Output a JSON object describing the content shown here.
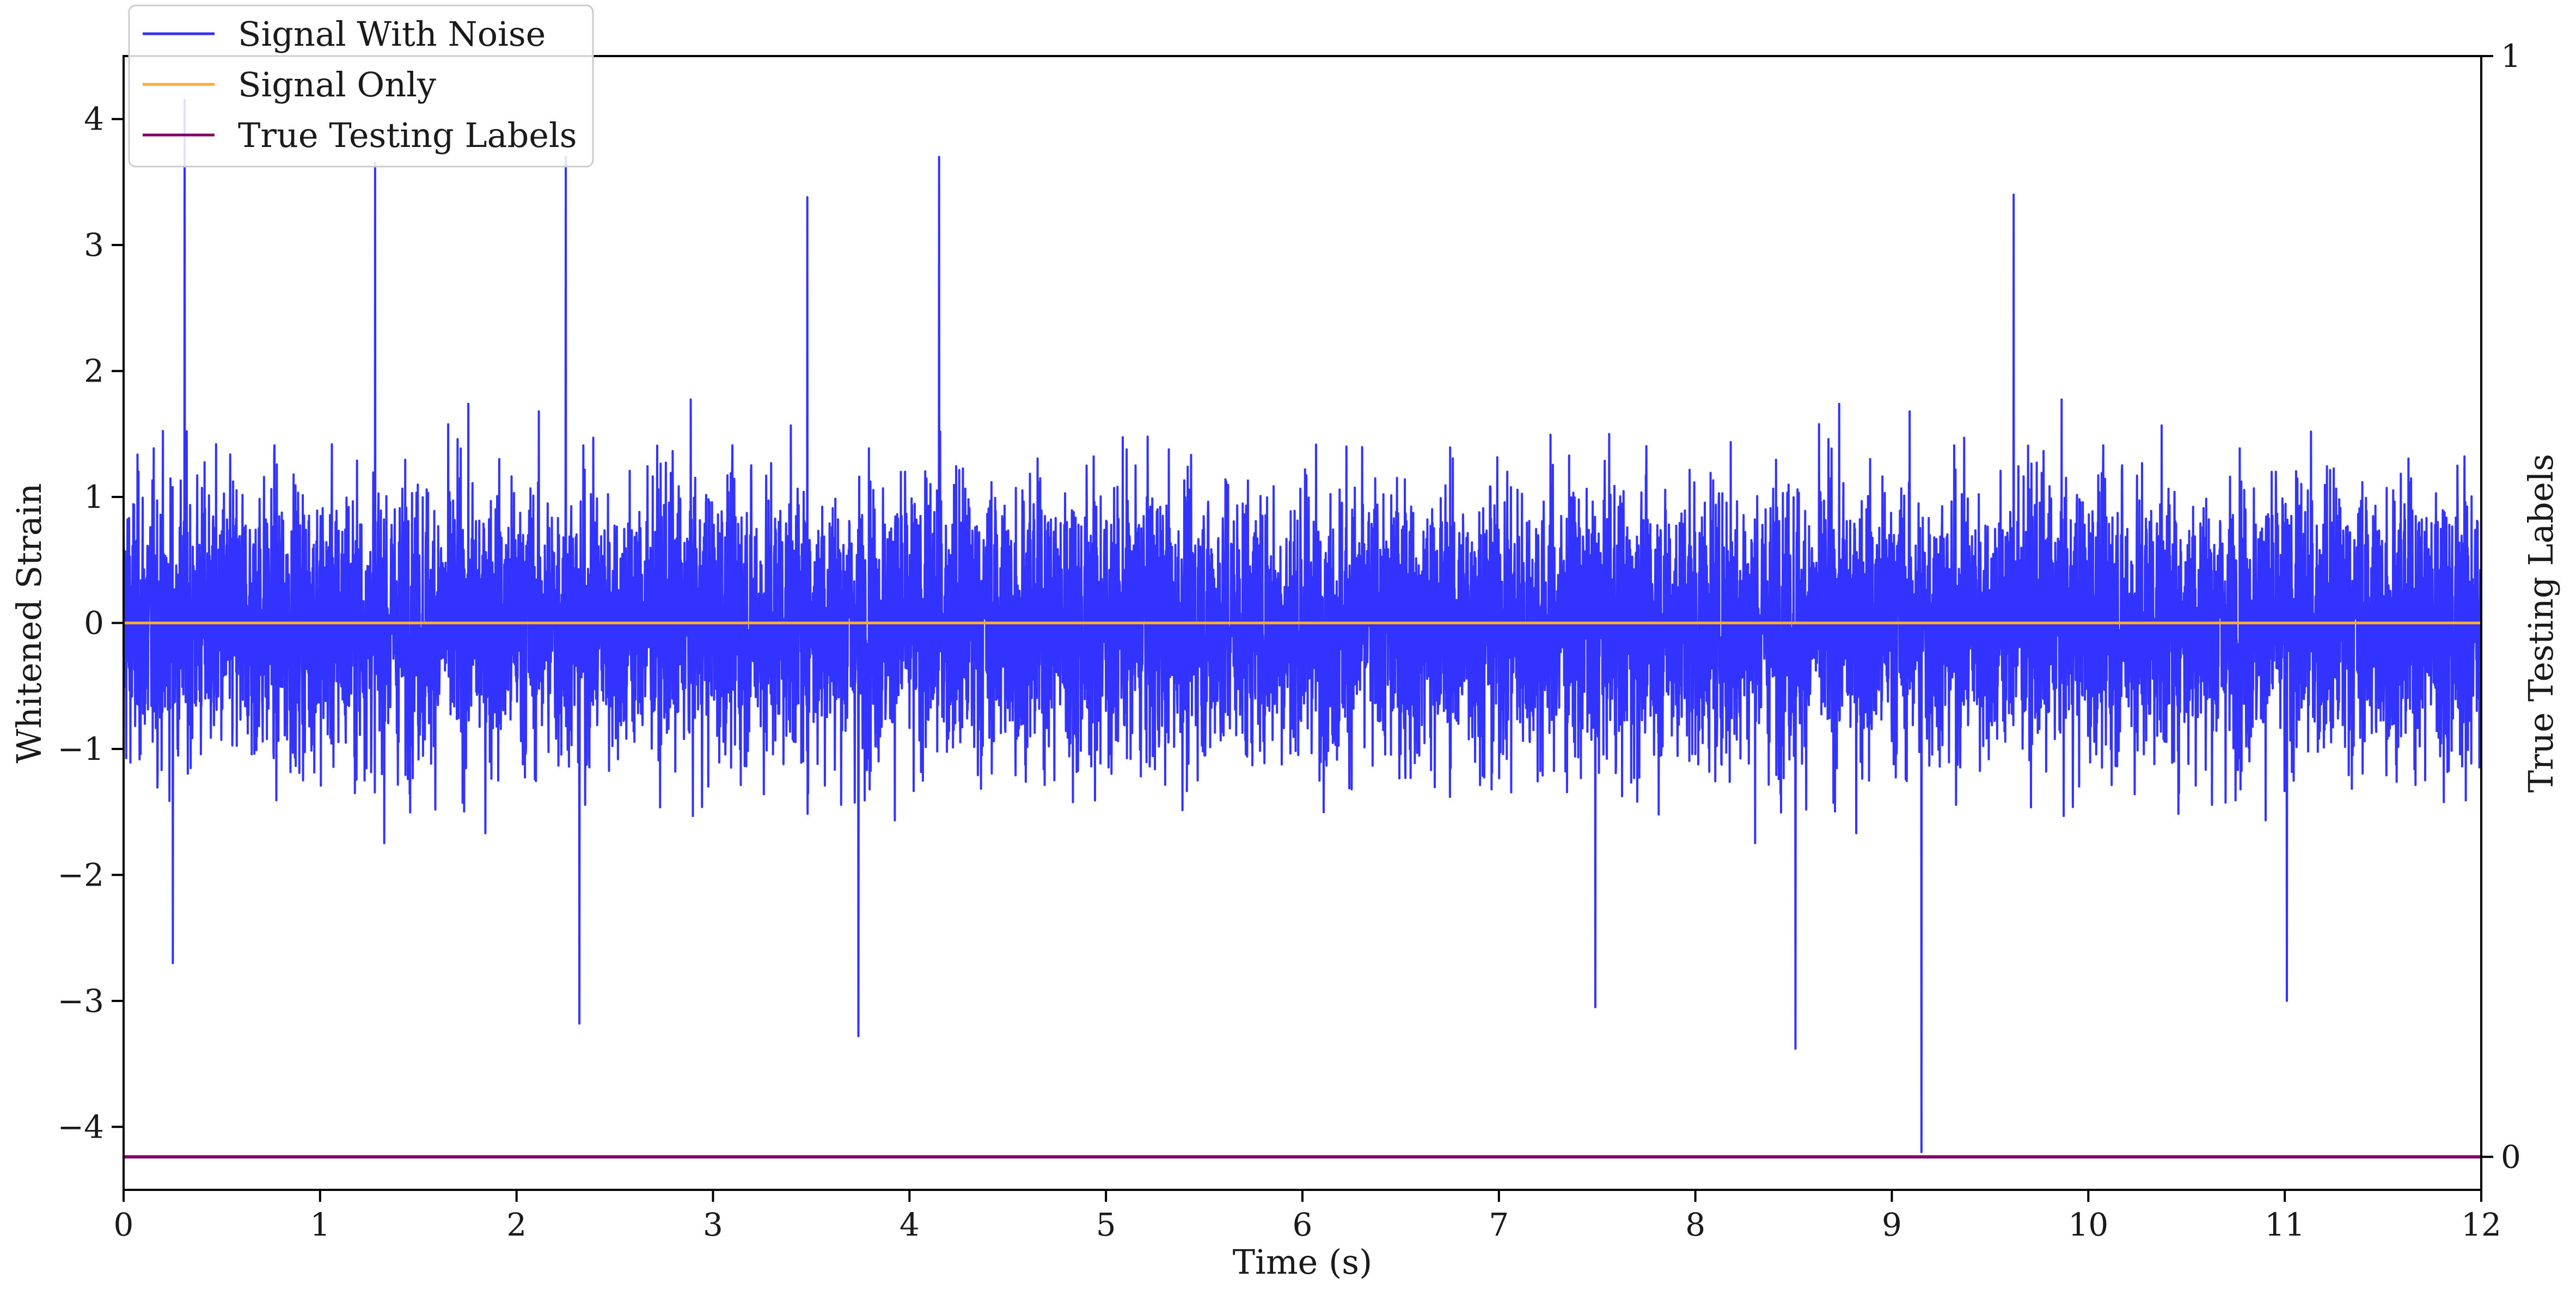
{
  "chart_data": {
    "type": "line",
    "xlabel": "Time (s)",
    "ylabel": "Whitened Strain",
    "ylabel_right": "True Testing Labels",
    "xlim": [
      0,
      12
    ],
    "ylim": [
      -4.5,
      4.5
    ],
    "ylim_right": [
      -0.03,
      1.0
    ],
    "x_ticks": [
      0,
      1,
      2,
      3,
      4,
      5,
      6,
      7,
      8,
      9,
      10,
      11,
      12
    ],
    "y_ticks": [
      -4,
      -3,
      -2,
      -1,
      0,
      1,
      2,
      3,
      4
    ],
    "y_right_ticks": [
      0,
      1
    ],
    "y_tick_labels": [
      "−4",
      "−3",
      "−2",
      "−1",
      "0",
      "1",
      "2",
      "3",
      "4"
    ],
    "grid": false,
    "legend_position": "upper-left",
    "series": [
      {
        "name": "Signal With Noise",
        "color": "#3333ff",
        "axis": "left",
        "description_values": {
          "x_range": [
            0,
            12
          ],
          "typical_band": [
            -1.6,
            1.3
          ],
          "max_peaks": [
            [
              0.31,
              4.15
            ],
            [
              4.15,
              3.7
            ],
            [
              2.25,
              3.7
            ],
            [
              9.62,
              3.4
            ],
            [
              1.28,
              3.65
            ],
            [
              3.48,
              3.38
            ]
          ],
          "min_peaks": [
            [
              9.15,
              -4.2
            ],
            [
              3.74,
              -3.28
            ],
            [
              2.32,
              -3.18
            ],
            [
              8.51,
              -3.38
            ],
            [
              7.49,
              -3.05
            ],
            [
              11.01,
              -3.0
            ],
            [
              0.25,
              -2.7
            ]
          ]
        }
      },
      {
        "name": "Signal Only",
        "color": "#ffaa33",
        "axis": "left",
        "x": [
          0,
          12
        ],
        "y": [
          0,
          0
        ]
      },
      {
        "name": "True Testing Labels",
        "color": "#800066",
        "axis": "right",
        "x": [
          0,
          12
        ],
        "y": [
          0,
          0
        ]
      }
    ]
  }
}
